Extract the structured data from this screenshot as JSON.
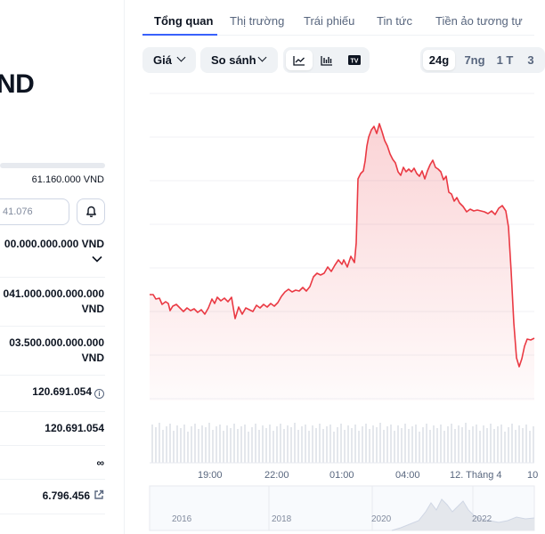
{
  "left": {
    "symbol": "ND",
    "high_value": "61.160.000 VND",
    "converter_value": "41.076",
    "stats": [
      {
        "value": "00.000.000.000 VND"
      },
      {
        "value": "041.000.000.000.000 VND"
      },
      {
        "value": "03.500.000.000.000 VND"
      },
      {
        "value": "120.691.054"
      },
      {
        "value": "120.691.054"
      },
      {
        "value": "∞"
      },
      {
        "value": "6.796.456"
      }
    ],
    "icons": [
      "bell-icon",
      "chevron-down-icon",
      "info-icon",
      "external-link-icon"
    ]
  },
  "tabs": [
    {
      "label": "Tổng quan",
      "active": true
    },
    {
      "label": "Thị trường"
    },
    {
      "label": "Trái phiếu"
    },
    {
      "label": "Tin tức"
    },
    {
      "label": "Tiền ảo tương tự"
    }
  ],
  "toolbar": {
    "price_label": "Giá",
    "compare_label": "So sánh",
    "chart_types": [
      "line-chart-icon",
      "candlestick-icon",
      "tradingview-icon"
    ],
    "tv_label": "TV",
    "ranges": [
      {
        "label": "24g",
        "active": true
      },
      {
        "label": "7ng"
      },
      {
        "label": "1 T"
      },
      {
        "label": "3"
      }
    ]
  },
  "chart": {
    "x_ticks": [
      "19:00",
      "22:00",
      "01:00",
      "04:00",
      "12. Tháng 4",
      "10"
    ],
    "navigator_ticks": [
      "2016",
      "2018",
      "2020",
      "2022"
    ],
    "line_color": "#ea3943",
    "bg_color": "#ffffff",
    "grid_color": "#f0f2f5"
  }
}
